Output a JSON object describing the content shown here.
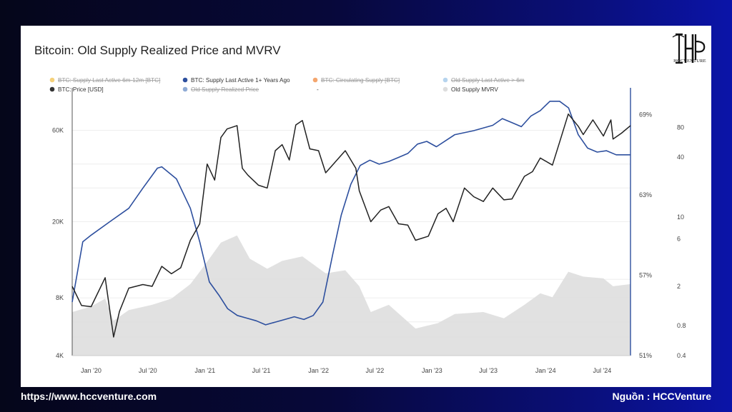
{
  "chart_data": {
    "type": "line",
    "title": "Bitcoin: Old Supply Realized Price and MVRV",
    "legend": [
      {
        "name": "BTC: Supply Last Active 6m-12m [BTC]",
        "color": "#f2c14e",
        "disabled": true
      },
      {
        "name": "BTC: Supply Last Active 1+ Years Ago",
        "color": "#2d4f9e",
        "disabled": false
      },
      {
        "name": "BTC: Circulating Supply [BTC]",
        "color": "#f0883e",
        "disabled": true
      },
      {
        "name": "Old Supply Last Active > 6m",
        "color": "#9ec5e8",
        "disabled": true
      },
      {
        "name": "BTC: Price [USD]",
        "color": "#333333",
        "disabled": false
      },
      {
        "name": "Old Supply Realized Price",
        "color": "#6a8fc7",
        "disabled": true
      },
      {
        "name": "-",
        "color": "",
        "disabled": false
      },
      {
        "name": "Old Supply MVRV",
        "color": "#dddddd",
        "disabled": false
      }
    ],
    "x_ticks": [
      "Jan '20",
      "Jul '20",
      "Jan '21",
      "Jul '21",
      "Jan '22",
      "Jul '22",
      "Jan '23",
      "Jul '23",
      "Jan '24",
      "Jul '24"
    ],
    "y_left_ticks": [
      "60K",
      "20K",
      "8K",
      "4K"
    ],
    "y_mid_ticks": [
      "69%",
      "63%",
      "57%",
      "51%"
    ],
    "y_right_ticks": [
      "80",
      "40",
      "10",
      "6",
      "2",
      "0.8",
      "0.4"
    ],
    "y_left_scale": "log",
    "y_left_range": [
      4000,
      100000
    ],
    "y_mid_range": [
      51,
      71
    ],
    "y_right_scale": "log",
    "y_right_range": [
      0.4,
      200
    ],
    "series": [
      {
        "name": "BTC: Price [USD]",
        "x": [
          "2019-11-01",
          "2019-12-01",
          "2020-01-01",
          "2020-02-15",
          "2020-03-13",
          "2020-04-01",
          "2020-05-01",
          "2020-06-15",
          "2020-07-15",
          "2020-08-15",
          "2020-09-15",
          "2020-10-15",
          "2020-11-15",
          "2020-12-15",
          "2021-01-08",
          "2021-02-01",
          "2021-02-21",
          "2021-03-13",
          "2021-04-14",
          "2021-05-01",
          "2021-05-19",
          "2021-06-22",
          "2021-07-20",
          "2021-08-15",
          "2021-09-06",
          "2021-09-29",
          "2021-10-20",
          "2021-11-10",
          "2021-12-04",
          "2022-01-01",
          "2022-01-24",
          "2022-03-28",
          "2022-05-01",
          "2022-05-12",
          "2022-06-18",
          "2022-07-20",
          "2022-08-15",
          "2022-09-15",
          "2022-10-15",
          "2022-11-09",
          "2022-12-20",
          "2023-01-20",
          "2023-02-15",
          "2023-03-10",
          "2023-04-15",
          "2023-05-15",
          "2023-06-15",
          "2023-07-15",
          "2023-08-20",
          "2023-09-15",
          "2023-10-25",
          "2023-11-20",
          "2023-12-15",
          "2024-01-23",
          "2024-02-15",
          "2024-03-14",
          "2024-04-15",
          "2024-05-01",
          "2024-06-01",
          "2024-07-05",
          "2024-07-29",
          "2024-08-05",
          "2024-09-01",
          "2024-09-30"
        ],
        "values": [
          9200,
          7300,
          7200,
          10200,
          5000,
          6800,
          9000,
          9400,
          9200,
          11700,
          10700,
          11500,
          16000,
          19500,
          40000,
          33000,
          55000,
          61000,
          63500,
          38000,
          35000,
          31000,
          30000,
          47000,
          50500,
          42000,
          64000,
          67500,
          48000,
          47000,
          36000,
          47000,
          38000,
          29000,
          20000,
          23000,
          24000,
          19500,
          19200,
          16000,
          16800,
          22000,
          23500,
          20000,
          30000,
          27000,
          25500,
          30000,
          26000,
          26300,
          34500,
          36500,
          43000,
          39500,
          52000,
          73000,
          63000,
          57000,
          68000,
          56000,
          68000,
          54000,
          58000,
          63500
        ]
      },
      {
        "name": "BTC: Supply Last Active 1+ Years Ago",
        "x": [
          "2019-11-01",
          "2019-12-05",
          "2020-01-01",
          "2020-03-01",
          "2020-05-01",
          "2020-06-15",
          "2020-08-01",
          "2020-08-15",
          "2020-10-01",
          "2020-11-15",
          "2020-12-15",
          "2021-01-15",
          "2021-02-15",
          "2021-03-15",
          "2021-04-15",
          "2021-05-15",
          "2021-06-15",
          "2021-07-15",
          "2021-08-15",
          "2021-09-15",
          "2021-10-15",
          "2021-11-15",
          "2021-12-15",
          "2022-01-15",
          "2022-02-15",
          "2022-03-15",
          "2022-04-15",
          "2022-05-15",
          "2022-06-15",
          "2022-07-15",
          "2022-08-15",
          "2022-09-15",
          "2022-10-15",
          "2022-11-15",
          "2022-12-15",
          "2023-01-15",
          "2023-03-15",
          "2023-05-15",
          "2023-07-15",
          "2023-08-15",
          "2023-09-15",
          "2023-10-15",
          "2023-11-15",
          "2023-12-15",
          "2024-01-15",
          "2024-02-15",
          "2024-03-15",
          "2024-04-15",
          "2024-05-15",
          "2024-06-15",
          "2024-07-15",
          "2024-08-15",
          "2024-09-30"
        ],
        "values": [
          55.0,
          59.5,
          60.0,
          61.0,
          62.0,
          63.5,
          65.0,
          65.1,
          64.2,
          62.0,
          59.5,
          56.5,
          55.5,
          54.5,
          54.0,
          53.8,
          53.6,
          53.3,
          53.5,
          53.7,
          53.9,
          53.7,
          54.0,
          55.0,
          58.5,
          61.5,
          63.8,
          65.2,
          65.6,
          65.3,
          65.5,
          65.8,
          66.1,
          66.8,
          67.0,
          66.6,
          67.5,
          67.8,
          68.2,
          68.7,
          68.4,
          68.1,
          68.9,
          69.3,
          70.0,
          70.0,
          69.5,
          67.5,
          66.5,
          66.2,
          66.3,
          66.0,
          66.0
        ]
      },
      {
        "name": "Old Supply MVRV",
        "x": [
          "2019-11-01",
          "2020-01-01",
          "2020-02-15",
          "2020-03-13",
          "2020-05-01",
          "2020-07-15",
          "2020-09-15",
          "2020-11-15",
          "2020-12-15",
          "2021-01-15",
          "2021-02-21",
          "2021-04-14",
          "2021-05-25",
          "2021-07-20",
          "2021-09-06",
          "2021-11-10",
          "2022-01-24",
          "2022-03-28",
          "2022-05-12",
          "2022-06-18",
          "2022-08-15",
          "2022-11-09",
          "2023-01-20",
          "2023-03-15",
          "2023-06-15",
          "2023-08-20",
          "2023-10-25",
          "2023-12-15",
          "2024-01-23",
          "2024-03-14",
          "2024-05-01",
          "2024-07-05",
          "2024-08-05",
          "2024-09-30"
        ],
        "values": [
          1.1,
          1.25,
          1.5,
          0.9,
          1.15,
          1.3,
          1.5,
          2.1,
          2.8,
          3.8,
          5.5,
          6.5,
          3.8,
          3.0,
          3.6,
          4.0,
          2.7,
          2.9,
          2.0,
          1.1,
          1.3,
          0.75,
          0.85,
          1.05,
          1.1,
          0.95,
          1.3,
          1.7,
          1.55,
          2.8,
          2.5,
          2.4,
          2.0,
          2.1
        ]
      }
    ]
  },
  "footer": {
    "website": "https://www.hccventure.com",
    "source": "Nguồn : HCCVenture"
  },
  "logo": {
    "text": "HCCVENTURE"
  }
}
